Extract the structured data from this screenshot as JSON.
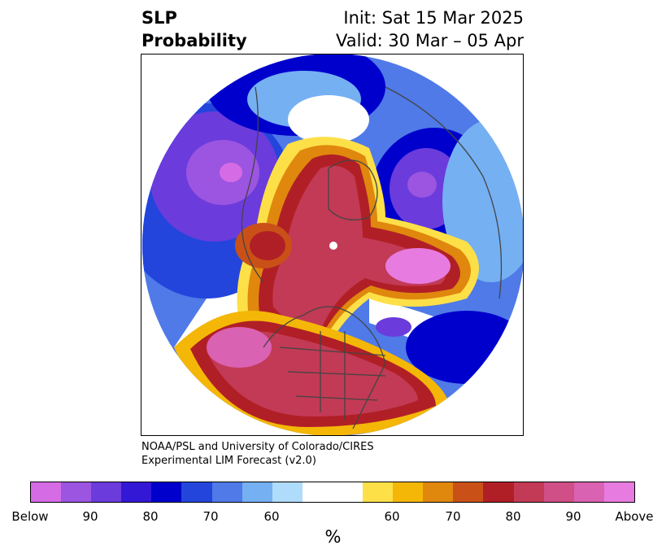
{
  "header": {
    "variable": "SLP",
    "product": "Probability",
    "init": "Init: Sat 15 Mar 2025",
    "valid": "Valid: 30 Mar – 05 Apr"
  },
  "credit": {
    "line1": "NOAA/PSL and University of Colorado/CIRES",
    "line2": "Experimental LIM Forecast (v2.0)"
  },
  "colorbar": {
    "colors": [
      "#d66be6",
      "#9b55e0",
      "#6b3bdc",
      "#3318d6",
      "#0000cc",
      "#2345dc",
      "#4f7ae8",
      "#75b0f2",
      "#b0dcfc",
      "#ffffff",
      "#ffffff",
      "#fde048",
      "#f4b707",
      "#e0870e",
      "#c95118",
      "#b11f26",
      "#c23a55",
      "#cf4f86",
      "#da62b2",
      "#e77be0"
    ],
    "tick_labels": [
      "Below",
      "90",
      "80",
      "70",
      "60",
      "60",
      "70",
      "80",
      "90",
      "Above"
    ],
    "unit": "%"
  },
  "map": {
    "projection": "polar stereographic (Northern Hemisphere)",
    "field": "sea level pressure tercile probability",
    "features": [
      {
        "region": "Arctic / Canada / North Atlantic",
        "category": "Above",
        "level": "90+"
      },
      {
        "region": "Eastern North Pacific",
        "category": "Above",
        "level": "90+"
      },
      {
        "region": "North Pacific / Bering Sea",
        "category": "Below",
        "level": "90+"
      },
      {
        "region": "Europe / Siberia",
        "category": "Below",
        "level": "80-90"
      },
      {
        "region": "Western Atlantic east of Newfoundland",
        "category": "Below",
        "level": "80"
      }
    ]
  }
}
